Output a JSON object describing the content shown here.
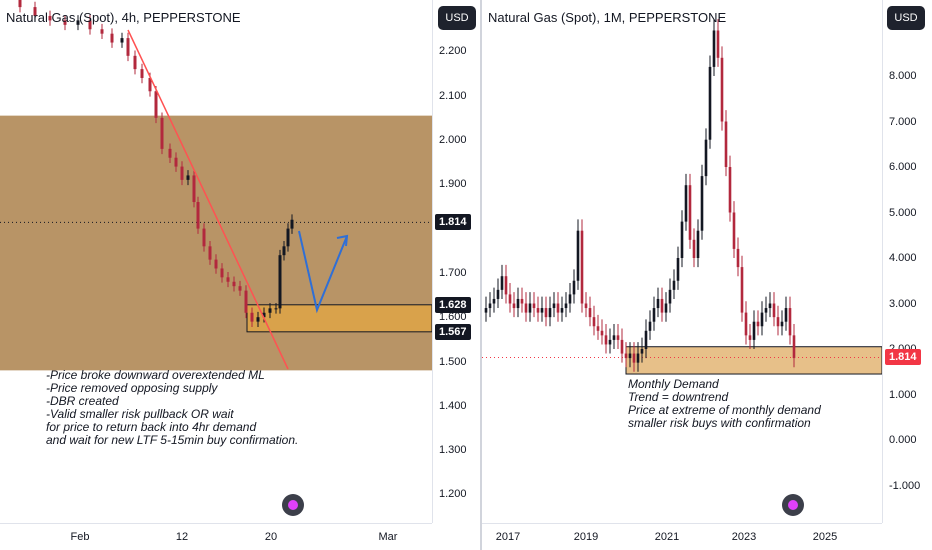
{
  "colors": {
    "bullish": "#131722",
    "bearish": "#b2283d",
    "demand_zone_large": "#b89466",
    "demand_zone_small": "#d9a24b",
    "monthly_demand_zone": "#e7c089",
    "trendline": "#ff5252",
    "projection": "#2f6fd6",
    "current_price_tag_left": "#131722",
    "current_price_tag_right": "#f23645"
  },
  "left_chart": {
    "title": "Natural Gas (Spot), 4h, PEPPERSTONE",
    "currency_button": "USD",
    "price_ticks": [
      "2.200",
      "2.100",
      "2.000",
      "1.900",
      "1.700",
      "1.600",
      "1.500",
      "1.400",
      "1.300",
      "1.200"
    ],
    "price_tick_values": [
      2.2,
      2.1,
      2.0,
      1.9,
      1.7,
      1.6,
      1.5,
      1.4,
      1.3,
      1.2
    ],
    "price_tags": [
      {
        "label": "1.814",
        "value": 1.814
      },
      {
        "label": "1.628",
        "value": 1.628
      },
      {
        "label": "1.567",
        "value": 1.567
      }
    ],
    "time_ticks": [
      "Feb",
      "12",
      "20",
      "Mar"
    ],
    "annotation": [
      "-Price broke downward overextended ML",
      "-Price removed opposing supply",
      "-DBR created",
      "-Valid smaller risk pullback OR wait",
      "for price to return back into 4hr demand",
      "and wait for new LTF 5-15min buy confirmation."
    ],
    "demand_zone_large": {
      "top": 2.055,
      "bottom": 1.48
    },
    "demand_zone_small": {
      "top": 1.628,
      "bottom": 1.567
    }
  },
  "right_chart": {
    "title": "Natural Gas (Spot), 1M, PEPPERSTONE",
    "currency_button": "USD",
    "price_ticks": [
      "8.000",
      "7.000",
      "6.000",
      "5.000",
      "4.000",
      "3.000",
      "2.000",
      "1.000",
      "0.000",
      "-1.000"
    ],
    "price_tick_values": [
      8,
      7,
      6,
      5,
      4,
      3,
      2,
      1,
      0,
      -1
    ],
    "current_price": {
      "label": "1.814",
      "value": 1.814
    },
    "time_ticks": [
      "2017",
      "2019",
      "2021",
      "2023",
      "2025"
    ],
    "annotation": [
      "Monthly Demand",
      "Trend = downtrend",
      "Price at extreme of monthly demand",
      "smaller risk buys with confirmation"
    ],
    "monthly_demand_zone": {
      "top": 2.05,
      "bottom": 1.45
    }
  }
}
